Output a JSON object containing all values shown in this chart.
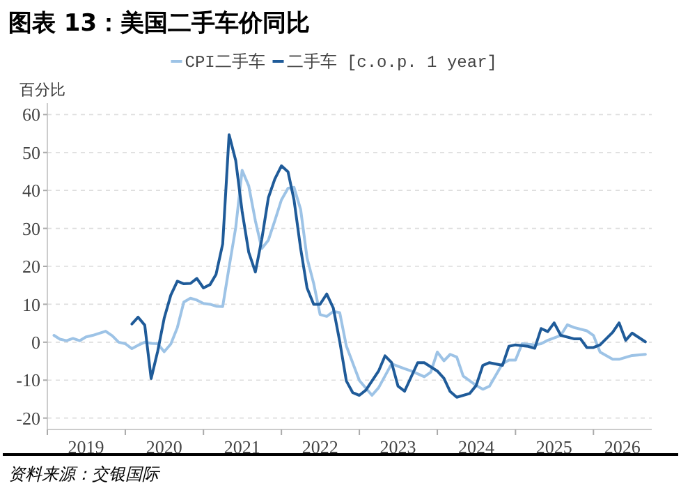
{
  "chart_data": {
    "type": "line",
    "title": "图表 13：美国二手车价同比",
    "ylabel": "百分比",
    "annotations": [
      "资料来源：交银国际"
    ],
    "legend": "top",
    "grid": "y",
    "xlim": [
      "2019-01-01",
      "2026-10-01"
    ],
    "xticks": [
      {
        "value": "2019-01-01",
        "label": null
      },
      {
        "value": "2019-07-01",
        "label": "2019"
      },
      {
        "value": "2020-01-01",
        "label": null
      },
      {
        "value": "2020-07-01",
        "label": "2020"
      },
      {
        "value": "2021-01-01",
        "label": null
      },
      {
        "value": "2021-07-01",
        "label": "2021"
      },
      {
        "value": "2022-01-01",
        "label": null
      },
      {
        "value": "2022-07-01",
        "label": "2022"
      },
      {
        "value": "2023-01-01",
        "label": null
      },
      {
        "value": "2023-07-01",
        "label": "2023"
      },
      {
        "value": "2024-01-01",
        "label": null
      },
      {
        "value": "2024-07-01",
        "label": "2024"
      },
      {
        "value": "2025-01-01",
        "label": null
      },
      {
        "value": "2025-07-01",
        "label": "2025"
      },
      {
        "value": "2026-01-01",
        "label": null
      },
      {
        "value": "2026-05-16",
        "label": "2026"
      }
    ],
    "ylim": [
      -23,
      63
    ],
    "yticks": [
      -20,
      -10,
      0,
      10,
      20,
      30,
      40,
      50,
      60
    ],
    "series": [
      {
        "name": "CPI二手车",
        "color": "#9dc3e6",
        "x": [
          "2019-02",
          "2019-03",
          "2019-04",
          "2019-05",
          "2019-06",
          "2019-07",
          "2019-08",
          "2019-10",
          "2019-11",
          "2019-12",
          "2020-01",
          "2020-02",
          "2020-03",
          "2020-04",
          "2020-05",
          "2020-06",
          "2020-07",
          "2020-08",
          "2020-09",
          "2020-10",
          "2020-11",
          "2020-12",
          "2021-01",
          "2021-02",
          "2021-03",
          "2021-04",
          "2021-05",
          "2021-06",
          "2021-07",
          "2021-08",
          "2021-09",
          "2021-10",
          "2021-11",
          "2021-12",
          "2022-01",
          "2022-02",
          "2022-03",
          "2022-04",
          "2022-05",
          "2022-06",
          "2022-07",
          "2022-08",
          "2022-09",
          "2022-10",
          "2022-11",
          "2023-01",
          "2023-03",
          "2023-04",
          "2023-06",
          "2023-08",
          "2023-09",
          "2023-11",
          "2023-12",
          "2024-01",
          "2024-02",
          "2024-03",
          "2024-04",
          "2024-05",
          "2024-07",
          "2024-08",
          "2024-09",
          "2024-11",
          "2024-12",
          "2025-01",
          "2025-02",
          "2025-04",
          "2025-05",
          "2025-06",
          "2025-08",
          "2025-09",
          "2025-10",
          "2025-12",
          "2026-01",
          "2026-02",
          "2026-04",
          "2026-05",
          "2026-07",
          "2026-09"
        ],
        "values": [
          1.8,
          0.8,
          0.4,
          1,
          0.4,
          1.4,
          1.8,
          2.9,
          1.7,
          0,
          -0.4,
          -1.7,
          -0.8,
          0,
          -0.3,
          -0.4,
          -2.5,
          -0.5,
          3.9,
          10.6,
          11.6,
          11.1,
          10.2,
          10,
          9.5,
          9.4,
          19.8,
          30.2,
          45.3,
          41.2,
          32,
          24.7,
          26.9,
          32,
          37.5,
          40.6,
          40.8,
          35,
          22.2,
          15.5,
          7.3,
          6.8,
          8.1,
          7.8,
          -1,
          -10.1,
          -14,
          -12,
          -5.7,
          -7,
          -7.6,
          -9.1,
          -7.9,
          -2.6,
          -4.9,
          -3.2,
          -3.9,
          -8.9,
          -11.4,
          -12.4,
          -11.6,
          -5.7,
          -4.7,
          -4.7,
          -0.4,
          -0.7,
          -0.4,
          0.5,
          1.8,
          4.6,
          3.9,
          3,
          1.8,
          -2.6,
          -4.5,
          -4.5,
          -3.5,
          -3.2
        ]
      },
      {
        "name": "二手车 [c.o.p. 1 year]",
        "color": "#1f5b99",
        "x": [
          "2020-02",
          "2020-03",
          "2020-04",
          "2020-05",
          "2020-06",
          "2020-07",
          "2020-08",
          "2020-09",
          "2020-10",
          "2020-11",
          "2020-12",
          "2021-01",
          "2021-02",
          "2021-03",
          "2021-04",
          "2021-05",
          "2021-06",
          "2021-07",
          "2021-08",
          "2021-09",
          "2021-10",
          "2021-11",
          "2021-12",
          "2022-01",
          "2022-02",
          "2022-03",
          "2022-04",
          "2022-05",
          "2022-06",
          "2022-07",
          "2022-08",
          "2022-09",
          "2022-10",
          "2022-11",
          "2022-12",
          "2023-01",
          "2023-02",
          "2023-04",
          "2023-05",
          "2023-06",
          "2023-07",
          "2023-08",
          "2023-10",
          "2023-11",
          "2024-01",
          "2024-02",
          "2024-03",
          "2024-04",
          "2024-06",
          "2024-07",
          "2024-08",
          "2024-09",
          "2024-11",
          "2024-12",
          "2025-01",
          "2025-03",
          "2025-04",
          "2025-05",
          "2025-06",
          "2025-07",
          "2025-08",
          "2025-10",
          "2025-11",
          "2025-12",
          "2026-01",
          "2026-02",
          "2026-04",
          "2026-05",
          "2026-06",
          "2026-07",
          "2026-09"
        ],
        "values": [
          4.8,
          6.6,
          4.5,
          -9.6,
          -2.3,
          6.3,
          12.4,
          16.1,
          15.4,
          15.5,
          16.8,
          14.3,
          15.2,
          17.9,
          25.9,
          54.7,
          47.9,
          34.5,
          23.7,
          18.5,
          27.1,
          38.1,
          43,
          46.5,
          44.9,
          37.5,
          24.7,
          14.3,
          10,
          10,
          12.7,
          9,
          0.2,
          -10.2,
          -13.3,
          -14,
          -12.6,
          -7.6,
          -3.6,
          -5.4,
          -11.6,
          -12.9,
          -5.4,
          -5.4,
          -7.6,
          -9.5,
          -13,
          -14.5,
          -13.5,
          -11.4,
          -6.1,
          -5.4,
          -6.1,
          -1.1,
          -0.7,
          -1.1,
          -1.6,
          3.6,
          2.8,
          5.1,
          1.8,
          0.9,
          0.9,
          -1.4,
          -1.4,
          -0.7,
          2.6,
          5.1,
          0.5,
          2.4,
          0.1
        ]
      }
    ]
  }
}
